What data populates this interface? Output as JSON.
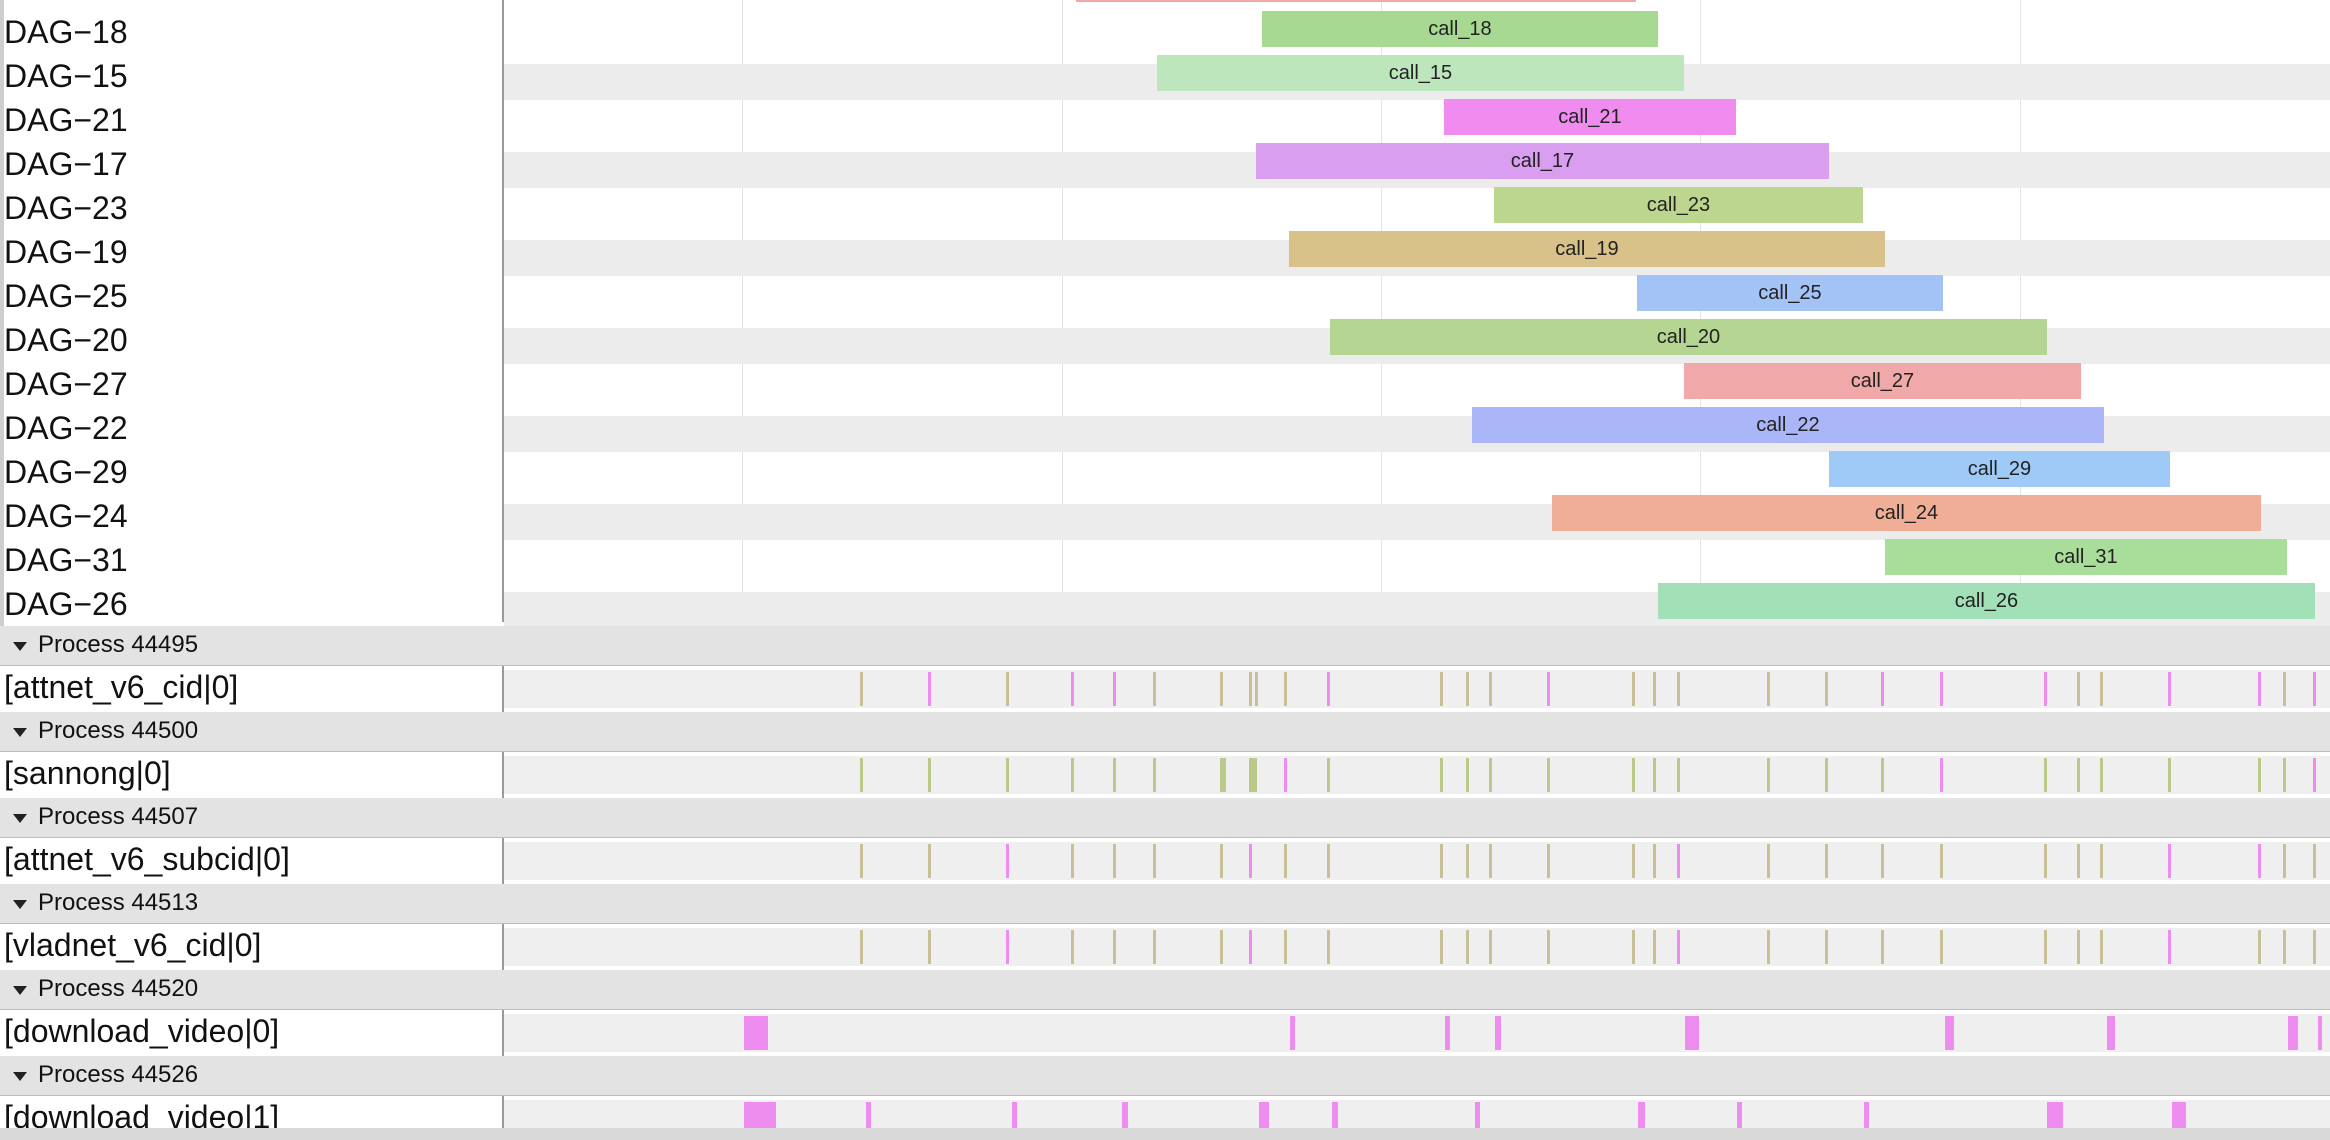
{
  "timeline": {
    "rows": [
      {
        "label": "DAG−18",
        "call": "call_18",
        "start": 1262,
        "end": 1658,
        "color": "#a8d993"
      },
      {
        "label": "DAG−15",
        "call": "call_15",
        "start": 1157,
        "end": 1684,
        "color": "#bde6bd"
      },
      {
        "label": "DAG−21",
        "call": "call_21",
        "start": 1444,
        "end": 1736,
        "color": "#f08cf0"
      },
      {
        "label": "DAG−17",
        "call": "call_17",
        "start": 1256,
        "end": 1829,
        "color": "#d99ef0"
      },
      {
        "label": "DAG−23",
        "call": "call_23",
        "start": 1494,
        "end": 1863,
        "color": "#bdd68f"
      },
      {
        "label": "DAG−19",
        "call": "call_19",
        "start": 1289,
        "end": 1885,
        "color": "#d8c28a"
      },
      {
        "label": "DAG−25",
        "call": "call_25",
        "start": 1637,
        "end": 1943,
        "color": "#a3c3f7"
      },
      {
        "label": "DAG−20",
        "call": "call_20",
        "start": 1330,
        "end": 2047,
        "color": "#b5d693"
      },
      {
        "label": "DAG−27",
        "call": "call_27",
        "start": 1684,
        "end": 2081,
        "color": "#f1a8a8"
      },
      {
        "label": "DAG−22",
        "call": "call_22",
        "start": 1472,
        "end": 2104,
        "color": "#aab6f7"
      },
      {
        "label": "DAG−29",
        "call": "call_29",
        "start": 1829,
        "end": 2170,
        "color": "#9fcaf7"
      },
      {
        "label": "DAG−24",
        "call": "call_24",
        "start": 1552,
        "end": 2261,
        "color": "#f0ae96"
      },
      {
        "label": "DAG−31",
        "call": "call_31",
        "start": 1885,
        "end": 2287,
        "color": "#a8dd9a"
      },
      {
        "label": "DAG−26",
        "call": "call_26",
        "start": 1658,
        "end": 2315,
        "color": "#a2e0b8"
      }
    ],
    "processes": [
      {
        "title": "Process 44495",
        "thread": "[attnet_v6_cid|0]"
      },
      {
        "title": "Process 44500",
        "thread": "[sannong|0]"
      },
      {
        "title": "Process 44507",
        "thread": "[attnet_v6_subcid|0]"
      },
      {
        "title": "Process 44513",
        "thread": "[vladnet_v6_cid|0]"
      },
      {
        "title": "Process 44520",
        "thread": "[download_video|0]"
      },
      {
        "title": "Process 44526",
        "thread": "[download_video|1]"
      }
    ]
  },
  "colors": {
    "tick_olive": "#bfbf8f",
    "tick_pink": "#f08cf0",
    "tick_green": "#b8c98a"
  },
  "icons": {
    "collapse": "caret-down-icon"
  }
}
